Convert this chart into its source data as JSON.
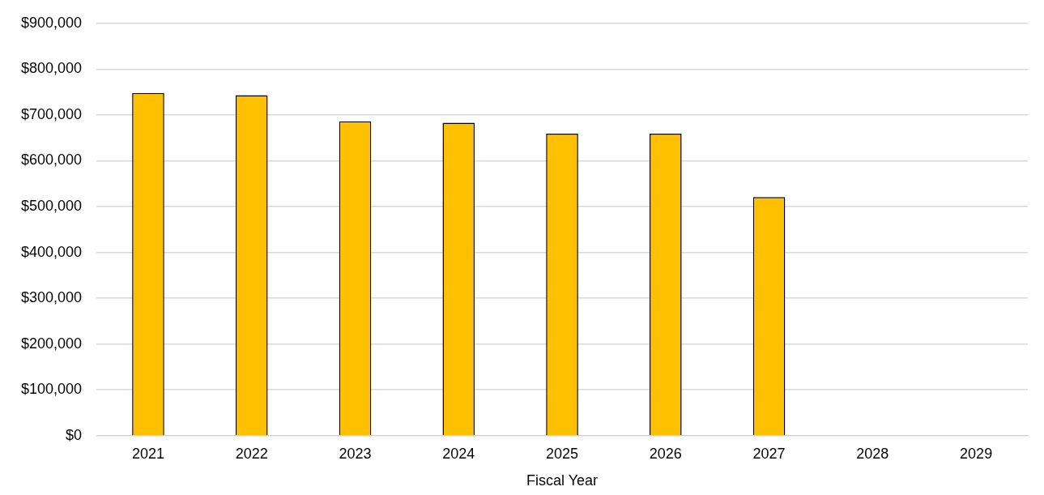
{
  "chart_data": {
    "type": "bar",
    "xlabel": "Fiscal Year",
    "categories": [
      "2021",
      "2022",
      "2023",
      "2024",
      "2025",
      "2026",
      "2027",
      "2028",
      "2029"
    ],
    "values": [
      748000,
      743000,
      686000,
      683000,
      659000,
      659000,
      521000,
      null,
      null
    ],
    "color": "#ffc000",
    "ylim": [
      0,
      900000
    ],
    "yticks": [
      {
        "value": 0,
        "label": "$0"
      },
      {
        "value": 100000,
        "label": "$100,000"
      },
      {
        "value": 200000,
        "label": "$200,000"
      },
      {
        "value": 300000,
        "label": "$300,000"
      },
      {
        "value": 400000,
        "label": "$400,000"
      },
      {
        "value": 500000,
        "label": "$500,000"
      },
      {
        "value": 600000,
        "label": "$600,000"
      },
      {
        "value": 700000,
        "label": "$700,000"
      },
      {
        "value": 800000,
        "label": "$800,000"
      },
      {
        "value": 900000,
        "label": "$900,000"
      }
    ],
    "grid": "y",
    "legend": false
  }
}
